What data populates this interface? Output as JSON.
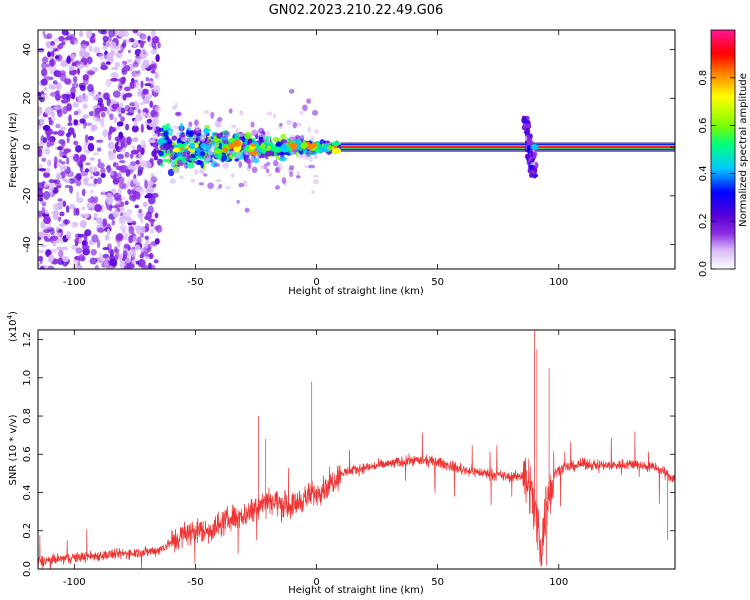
{
  "figure": {
    "title": "GN02.2023.210.22.49.G06"
  },
  "chart_data": [
    {
      "type": "heatmap",
      "xlabel": "Height of straight line (km)",
      "ylabel": "Frequency (Hz)",
      "xlim": [
        -115,
        148
      ],
      "ylim": [
        -50,
        48
      ],
      "xticks": [
        -100,
        -50,
        0,
        50,
        100
      ],
      "xtick_labels": [
        "-100",
        "-50",
        "0",
        "50",
        "100"
      ],
      "yticks": [
        -40,
        -20,
        0,
        20,
        40
      ],
      "ytick_labels": [
        "-40",
        "-20",
        "0",
        "20",
        "40"
      ],
      "colorbar": {
        "label": "Normalized spectral amplitude",
        "range": [
          0,
          1
        ],
        "ticks": [
          0,
          0.2,
          0.4,
          0.6,
          0.8
        ],
        "tick_labels": [
          "0.0",
          "0.2",
          "0.4",
          "0.6",
          "0.8"
        ],
        "colors": [
          "#ffffff",
          "#d8b8f8",
          "#8a2be2",
          "#5a00d8",
          "#0000ff",
          "#00c8ff",
          "#00ff80",
          "#7cfc00",
          "#ffff00",
          "#ff8000",
          "#ff0000",
          "#ff1493"
        ]
      },
      "features": {
        "carrier_line_start_km": 10,
        "carrier_line_freq_hz": 0,
        "disturbance_center_km": 88,
        "disturbance_freq_range_hz": [
          -12,
          12
        ],
        "scatter_region_km": [
          -115,
          -65
        ],
        "fade_region_km": [
          -65,
          10
        ]
      }
    },
    {
      "type": "line",
      "xlabel": "Height of straight line (km)",
      "ylabel": "SNR (10 * v/v)",
      "multiplier_label": "(x10",
      "multiplier_exp": "4",
      "xlim": [
        -115,
        148
      ],
      "ylim": [
        0,
        1.25
      ],
      "xticks": [
        -100,
        -50,
        0,
        50,
        100
      ],
      "xtick_labels": [
        "-100",
        "-50",
        "0",
        "50",
        "100"
      ],
      "yticks": [
        0,
        0.2,
        0.4,
        0.6,
        0.8,
        1.0,
        1.2
      ],
      "ytick_labels": [
        "0.0",
        "0.2",
        "0.4",
        "0.6",
        "0.8",
        "1.0",
        "1.2"
      ],
      "color": "#ee3333",
      "series": [
        {
          "x": [
            -115,
            -100,
            -90,
            -80,
            -70,
            -65,
            -60,
            -55,
            -50,
            -45,
            -40,
            -35,
            -30,
            -25,
            -20,
            -15,
            -10,
            -5,
            0,
            5,
            10,
            20,
            30,
            40,
            50,
            60,
            70,
            80,
            85,
            88,
            90,
            93,
            95,
            98,
            100,
            110,
            120,
            130,
            140,
            148
          ],
          "values": [
            0.04,
            0.06,
            0.07,
            0.08,
            0.09,
            0.1,
            0.14,
            0.18,
            0.2,
            0.2,
            0.23,
            0.27,
            0.28,
            0.33,
            0.37,
            0.34,
            0.33,
            0.37,
            0.4,
            0.44,
            0.5,
            0.53,
            0.55,
            0.57,
            0.56,
            0.52,
            0.5,
            0.48,
            0.49,
            0.45,
            0.3,
            0.12,
            0.35,
            0.5,
            0.52,
            0.55,
            0.54,
            0.55,
            0.53,
            0.47
          ]
        }
      ],
      "spikes": [
        {
          "x": -24,
          "y": 0.8
        },
        {
          "x": -21,
          "y": 0.68
        },
        {
          "x": -2,
          "y": 0.98
        },
        {
          "x": 90,
          "y": 1.25
        },
        {
          "x": 91,
          "y": 1.15
        },
        {
          "x": 96,
          "y": 1.05
        },
        {
          "x": 95,
          "y": 0.02
        },
        {
          "x": 145,
          "y": 0.15
        }
      ]
    }
  ]
}
